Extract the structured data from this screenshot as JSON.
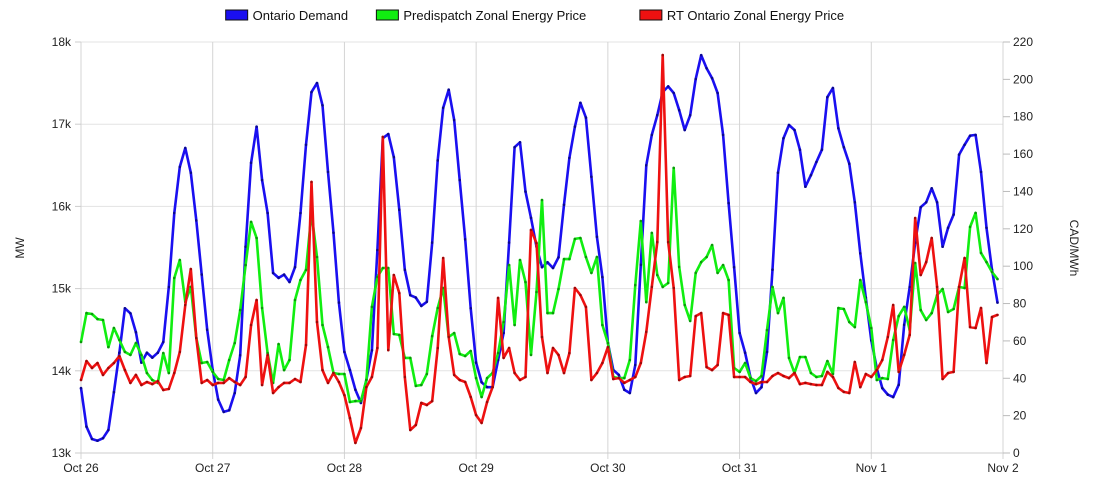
{
  "chart_data": {
    "type": "line",
    "title": "",
    "x_unit": "hour since Oct 26 00:00",
    "x_ticks": [
      "Oct 26",
      "Oct 27",
      "Oct 28",
      "Oct 29",
      "Oct 30",
      "Oct 31",
      "Nov 1",
      "Nov 2"
    ],
    "xlim_hours": [
      0,
      168
    ],
    "left_axis": {
      "label": "MW",
      "ylim": [
        13000,
        18000
      ],
      "ticks": [
        13000,
        14000,
        15000,
        16000,
        17000,
        18000
      ],
      "tick_labels": [
        "13k",
        "14k",
        "15k",
        "16k",
        "17k",
        "18k"
      ]
    },
    "right_axis": {
      "label": "CAD/MWh",
      "ylim": [
        0,
        220
      ],
      "ticks": [
        0,
        20,
        40,
        60,
        80,
        100,
        120,
        140,
        160,
        180,
        200,
        220
      ],
      "tick_labels": [
        "0",
        "20",
        "40",
        "60",
        "80",
        "100",
        "120",
        "140",
        "160",
        "180",
        "200",
        "220"
      ]
    },
    "grid": true,
    "legend_position": "top-center",
    "series": [
      {
        "name": "Ontario Demand",
        "axis": "left",
        "color": "#1a0ff0",
        "marker_color": "#0a0890",
        "values": [
          13790,
          13320,
          13170,
          13150,
          13180,
          13280,
          13740,
          14220,
          14760,
          14700,
          14470,
          14100,
          14220,
          14160,
          14220,
          14350,
          15020,
          15920,
          16480,
          16710,
          16410,
          15830,
          15170,
          14500,
          14010,
          13650,
          13500,
          13520,
          13730,
          14190,
          15510,
          16530,
          16970,
          16320,
          15920,
          15190,
          15130,
          15170,
          15080,
          15260,
          15920,
          16750,
          17390,
          17500,
          17230,
          16420,
          15680,
          14830,
          14230,
          14010,
          13770,
          13610,
          13890,
          14250,
          15470,
          16830,
          16880,
          16600,
          15960,
          15230,
          14920,
          14890,
          14790,
          14840,
          15560,
          16560,
          17200,
          17420,
          17050,
          16320,
          15600,
          14760,
          14100,
          13860,
          13800,
          13800,
          14130,
          14460,
          15560,
          16720,
          16780,
          16180,
          15860,
          15510,
          15260,
          15320,
          15250,
          15380,
          16020,
          16590,
          16970,
          17260,
          17080,
          16360,
          15630,
          15140,
          14340,
          14010,
          13950,
          13770,
          13730,
          14070,
          15290,
          16500,
          16870,
          17110,
          17390,
          17460,
          17380,
          17170,
          16930,
          17110,
          17550,
          17840,
          17680,
          17560,
          17380,
          16870,
          16040,
          15260,
          14460,
          14220,
          13920,
          13730,
          13800,
          14230,
          15230,
          16410,
          16830,
          16990,
          16930,
          16690,
          16240,
          16380,
          16540,
          16690,
          17330,
          17440,
          16950,
          16720,
          16520,
          16050,
          15430,
          14890,
          14370,
          14030,
          13790,
          13710,
          13680,
          13830,
          14560,
          15020,
          15560,
          15990,
          16050,
          16220,
          16050,
          15510,
          15740,
          15900,
          16630,
          16750,
          16860,
          16870,
          16420,
          15740,
          15230,
          14830
        ]
      },
      {
        "name": "Predispatch Zonal Energy Price",
        "axis": "right",
        "color": "#11ee11",
        "marker_color": "#0a9a0a",
        "values": [
          59.4,
          74.9,
          74.4,
          71.7,
          71.2,
          56.7,
          66.9,
          60.5,
          54.1,
          52.5,
          58.9,
          52.5,
          42.8,
          39.1,
          37.5,
          53.5,
          42.8,
          93.7,
          103.3,
          80.8,
          88.9,
          61.6,
          48.2,
          48.7,
          43.4,
          39.6,
          39.1,
          49.8,
          58.9,
          76.5,
          100.6,
          123.7,
          115.1,
          77.6,
          53.5,
          37.5,
          58.3,
          44.4,
          49.8,
          81.9,
          92.6,
          98.0,
          128.5,
          104.9,
          68.5,
          56.7,
          42.8,
          42.3,
          42.3,
          27.3,
          27.8,
          27.8,
          39.1,
          78.2,
          94.2,
          99.0,
          99.0,
          63.7,
          63.2,
          50.9,
          50.9,
          35.9,
          36.4,
          42.3,
          62.6,
          77.6,
          88.3,
          62.1,
          64.2,
          53.0,
          51.9,
          54.6,
          40.1,
          30.0,
          40.1,
          42.8,
          53.5,
          70.1,
          100.6,
          68.5,
          103.3,
          91.5,
          52.5,
          86.2,
          135.4,
          74.9,
          74.9,
          87.8,
          103.8,
          103.8,
          114.6,
          115.1,
          104.9,
          96.4,
          104.9,
          68.5,
          58.9,
          40.7,
          40.1,
          40.1,
          49.8,
          89.9,
          124.2,
          80.8,
          117.8,
          95.3,
          88.9,
          91.0,
          152.6,
          99.6,
          79.2,
          70.7,
          96.4,
          102.2,
          104.9,
          111.3,
          96.4,
          100.6,
          92.6,
          45.5,
          43.4,
          48.2,
          40.1,
          38.5,
          41.2,
          65.8,
          88.9,
          74.9,
          83.0,
          50.9,
          42.8,
          51.4,
          51.4,
          42.8,
          40.7,
          41.2,
          49.2,
          42.3,
          77.6,
          77.1,
          70.1,
          67.4,
          92.6,
          80.8,
          66.9,
          39.1,
          40.1,
          39.6,
          60.5,
          73.3,
          78.2,
          65.8,
          101.7,
          76.5,
          71.2,
          74.9,
          84.6,
          87.8,
          75.5,
          77.1,
          88.9,
          88.3,
          121.0,
          128.5,
          107.1,
          102.2,
          96.9,
          93.1
        ]
      },
      {
        "name": "RT Ontario Zonal Energy Price",
        "axis": "right",
        "color": "#ee1111",
        "marker_color": "#a00808",
        "values": [
          39.1,
          49.2,
          45.5,
          48.2,
          41.8,
          45.5,
          48.2,
          51.9,
          44.4,
          37.5,
          41.8,
          36.4,
          38.0,
          36.9,
          38.5,
          33.7,
          34.3,
          42.8,
          54.1,
          79.2,
          98.5,
          61.6,
          37.5,
          39.1,
          36.4,
          37.5,
          37.5,
          40.1,
          38.0,
          36.4,
          40.7,
          68.5,
          81.9,
          36.4,
          52.5,
          32.1,
          35.3,
          37.5,
          37.5,
          39.6,
          38.0,
          57.8,
          145.1,
          70.1,
          44.4,
          37.5,
          42.8,
          38.0,
          31.0,
          18.7,
          5.4,
          13.4,
          35.3,
          40.7,
          56.2,
          169.2,
          55.1,
          95.3,
          85.6,
          40.7,
          12.3,
          15.0,
          26.8,
          25.7,
          27.8,
          56.2,
          104.4,
          62.1,
          41.8,
          39.1,
          38.0,
          30.0,
          20.3,
          16.1,
          27.3,
          35.3,
          83.0,
          50.9,
          56.2,
          42.8,
          39.1,
          40.7,
          119.4,
          112.4,
          62.1,
          42.8,
          56.2,
          52.5,
          42.8,
          53.5,
          88.3,
          84.6,
          78.2,
          39.1,
          42.8,
          48.2,
          56.7,
          39.6,
          40.1,
          37.5,
          39.1,
          40.7,
          48.2,
          64.8,
          88.9,
          112.9,
          213.0,
          112.9,
          88.3,
          39.1,
          40.7,
          41.2,
          73.3,
          74.9,
          46.0,
          44.4,
          47.1,
          74.9,
          73.9,
          40.7,
          40.7,
          40.7,
          38.0,
          36.9,
          38.0,
          38.0,
          41.2,
          42.8,
          41.2,
          40.1,
          42.8,
          36.9,
          37.5,
          36.9,
          36.4,
          36.4,
          43.4,
          40.7,
          34.8,
          32.7,
          32.1,
          48.7,
          35.3,
          42.3,
          40.7,
          44.4,
          49.8,
          62.1,
          79.2,
          43.4,
          52.5,
          63.2,
          125.8,
          95.3,
          102.2,
          115.1,
          88.9,
          39.6,
          42.8,
          43.4,
          88.9,
          104.4,
          67.4,
          66.9,
          77.6,
          48.2,
          72.8,
          73.9
        ]
      }
    ]
  }
}
